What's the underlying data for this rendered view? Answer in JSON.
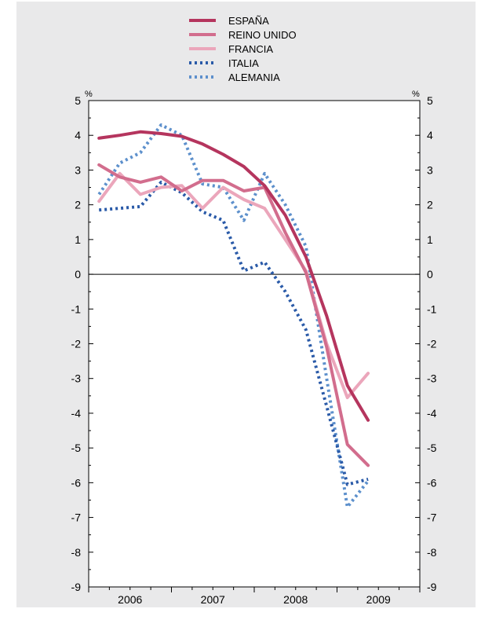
{
  "chart_data": {
    "type": "line",
    "y_unit_left": "%",
    "y_unit_right": "%",
    "ylim": [
      -9,
      5
    ],
    "y_ticks": [
      5,
      4,
      3,
      2,
      1,
      0,
      -1,
      -2,
      -3,
      -4,
      -5,
      -6,
      -7,
      -8,
      -9
    ],
    "y_tick_labels": [
      "5",
      "4",
      "3",
      "2",
      "1",
      "0",
      "-1",
      "-2",
      "-3",
      "-4",
      "-5",
      "-6",
      "-7",
      "-8",
      "-9"
    ],
    "x_labels": [
      "2006",
      "2007",
      "2008",
      "2009"
    ],
    "x_label_positions": [
      2006.5,
      2007.5,
      2008.5,
      2009.5
    ],
    "xlim": [
      2006,
      2010
    ],
    "grid": true,
    "legend_position": "top-center",
    "series": [
      {
        "name": "ESPAÑA",
        "color": "#b5355e",
        "style": "solid",
        "width": 4,
        "x": [
          2006.125,
          2006.375,
          2006.625,
          2006.875,
          2007.125,
          2007.375,
          2007.625,
          2007.875,
          2008.125,
          2008.375,
          2008.625,
          2008.875,
          2009.125,
          2009.375
        ],
        "y": [
          3.92,
          4.0,
          4.1,
          4.05,
          3.97,
          3.75,
          3.45,
          3.1,
          2.55,
          1.7,
          0.5,
          -1.2,
          -3.2,
          -4.2
        ]
      },
      {
        "name": "REINO UNIDO",
        "color": "#d26d8d",
        "style": "solid",
        "width": 4,
        "x": [
          2006.125,
          2006.375,
          2006.625,
          2006.875,
          2007.125,
          2007.375,
          2007.625,
          2007.875,
          2008.125,
          2008.375,
          2008.625,
          2008.875,
          2009.125,
          2009.375
        ],
        "y": [
          3.15,
          2.8,
          2.65,
          2.8,
          2.4,
          2.7,
          2.7,
          2.4,
          2.5,
          1.2,
          0.05,
          -2.1,
          -4.9,
          -5.5
        ]
      },
      {
        "name": "FRANCIA",
        "color": "#eba6bb",
        "style": "solid",
        "width": 4,
        "x": [
          2006.125,
          2006.375,
          2006.625,
          2006.875,
          2007.125,
          2007.375,
          2007.625,
          2007.875,
          2008.125,
          2008.375,
          2008.625,
          2008.875,
          2009.125,
          2009.375
        ],
        "y": [
          2.1,
          2.9,
          2.3,
          2.5,
          2.55,
          1.9,
          2.5,
          2.15,
          1.9,
          1.0,
          0.1,
          -2.0,
          -3.55,
          -2.85
        ]
      },
      {
        "name": "ITALIA",
        "color": "#2a5aa8",
        "style": "dotted",
        "width": 4,
        "x": [
          2006.125,
          2006.375,
          2006.625,
          2006.875,
          2007.125,
          2007.375,
          2007.625,
          2007.875,
          2008.125,
          2008.375,
          2008.625,
          2008.875,
          2009.125,
          2009.375
        ],
        "y": [
          1.85,
          1.9,
          1.95,
          2.65,
          2.35,
          1.8,
          1.55,
          0.1,
          0.35,
          -0.5,
          -1.6,
          -3.8,
          -6.05,
          -5.9
        ]
      },
      {
        "name": "ALEMANIA",
        "color": "#5d90cc",
        "style": "dotted",
        "width": 4,
        "x": [
          2006.125,
          2006.375,
          2006.625,
          2006.875,
          2007.125,
          2007.375,
          2007.625,
          2007.875,
          2008.125,
          2008.375,
          2008.625,
          2008.875,
          2009.125,
          2009.375
        ],
        "y": [
          2.3,
          3.2,
          3.5,
          4.3,
          4.0,
          2.6,
          2.5,
          1.55,
          2.9,
          2.0,
          0.8,
          -3.0,
          -6.7,
          -5.95
        ]
      }
    ]
  }
}
